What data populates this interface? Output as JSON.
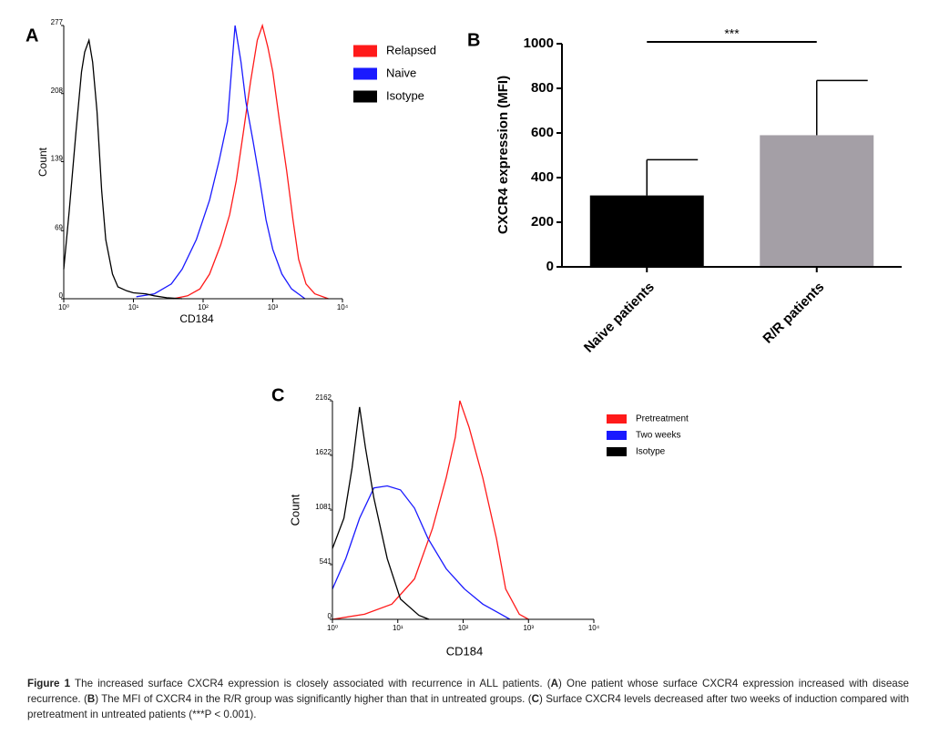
{
  "chart_data": [
    {
      "type": "line",
      "panel": "A",
      "xlabel": "CD184",
      "ylabel": "Count",
      "log_x": true,
      "xlim": [
        1,
        10000
      ],
      "xticks": [
        {
          "value": 1,
          "label": "10⁰"
        },
        {
          "value": 10,
          "label": "10¹"
        },
        {
          "value": 100,
          "label": "10²"
        },
        {
          "value": 1000,
          "label": "10³"
        },
        {
          "value": 10000,
          "label": "10⁴"
        }
      ],
      "ylim": [
        0,
        277
      ],
      "yticks": [
        0,
        69,
        139,
        208,
        277
      ],
      "legend": "right",
      "series": [
        {
          "name": "Relapsed",
          "color": "#ff1a1a",
          "x": [
            37,
            60,
            90,
            124,
            180,
            240,
            300,
            380,
            480,
            600,
            710,
            850,
            1000,
            1250,
            1580,
            1950,
            2350,
            3000,
            4000,
            6300
          ],
          "values": [
            0,
            3,
            10,
            25,
            55,
            85,
            120,
            170,
            220,
            262,
            277,
            255,
            230,
            180,
            130,
            80,
            40,
            15,
            5,
            0
          ]
        },
        {
          "name": "Naive",
          "color": "#1a1aff",
          "x": [
            11,
            20,
            35,
            50,
            80,
            124,
            170,
            224,
            288,
            350,
            410,
            520,
            650,
            800,
            1000,
            1350,
            1860,
            2900
          ],
          "values": [
            2,
            5,
            15,
            30,
            60,
            100,
            140,
            180,
            277,
            240,
            200,
            160,
            120,
            80,
            50,
            25,
            10,
            0
          ]
        },
        {
          "name": "Isotype",
          "color": "#000000",
          "x": [
            1.0,
            1.2,
            1.5,
            1.8,
            2.0,
            2.3,
            2.6,
            3.0,
            3.5,
            4,
            5,
            6,
            8,
            10,
            15,
            20,
            30,
            50
          ],
          "values": [
            30,
            90,
            170,
            230,
            250,
            262,
            240,
            190,
            110,
            60,
            25,
            12,
            8,
            6,
            5,
            3,
            1,
            0
          ]
        }
      ]
    },
    {
      "type": "bar",
      "panel": "B",
      "ylabel": "CXCR4 expression (MFI)",
      "categories": [
        "Naive patients",
        "R/R patients"
      ],
      "values": [
        320,
        590
      ],
      "errors": [
        160,
        245
      ],
      "colors": [
        "#000000",
        "#a49fa6"
      ],
      "ylim": [
        0,
        1000
      ],
      "yticks": [
        0,
        200,
        400,
        600,
        800,
        1000
      ],
      "annotation": "***"
    },
    {
      "type": "line",
      "panel": "C",
      "xlabel": "CD184",
      "ylabel": "Count",
      "log_x": true,
      "xlim": [
        1,
        10000
      ],
      "xticks": [
        {
          "value": 1,
          "label": "10⁰"
        },
        {
          "value": 10,
          "label": "10¹"
        },
        {
          "value": 100,
          "label": "10²"
        },
        {
          "value": 1000,
          "label": "10³"
        },
        {
          "value": 10000,
          "label": "10⁴"
        }
      ],
      "ylim": [
        0,
        2162
      ],
      "yticks": [
        0,
        541,
        1081,
        1622,
        2162
      ],
      "legend": "right",
      "series": [
        {
          "name": "Pretreatment",
          "color": "#ff1a1a",
          "x": [
            1.0,
            3.1,
            8.1,
            18,
            34,
            55,
            76,
            89,
            123,
            200,
            324,
            447,
            724,
            1000
          ],
          "values": [
            0,
            50,
            150,
            400,
            900,
            1400,
            1800,
            2162,
            1900,
            1400,
            800,
            300,
            50,
            0
          ]
        },
        {
          "name": "Two weeks",
          "color": "#1a1aff",
          "x": [
            1.0,
            1.6,
            2.6,
            4.3,
            6.9,
            11,
            18,
            29,
            55,
            105,
            200,
            380,
            520
          ],
          "values": [
            300,
            600,
            1000,
            1300,
            1320,
            1280,
            1100,
            800,
            500,
            300,
            150,
            50,
            0
          ]
        },
        {
          "name": "Isotype",
          "color": "#000000",
          "x": [
            1.0,
            1.5,
            2.0,
            2.6,
            3.2,
            4.3,
            6.9,
            11,
            21,
            30
          ],
          "values": [
            700,
            1000,
            1500,
            2100,
            1700,
            1200,
            600,
            200,
            40,
            0
          ]
        }
      ]
    }
  ],
  "caption": [
    {
      "text": "Figure 1",
      "bold": true
    },
    {
      "text": " The increased surface CXCR4 expression is closely associated with recurrence in ALL patients. (",
      "bold": false
    },
    {
      "text": "A",
      "bold": true
    },
    {
      "text": ") One patient whose surface CXCR4 expression increased with disease recurrence. (",
      "bold": false
    },
    {
      "text": "B",
      "bold": true
    },
    {
      "text": ") The MFI of CXCR4 in the R/R group was significantly higher than that in untreated groups. (",
      "bold": false
    },
    {
      "text": "C",
      "bold": true
    },
    {
      "text": ") Surface CXCR4 levels decreased after two weeks of induction compared with pretreatment in untreated patients (***P < 0.001).",
      "bold": false
    }
  ]
}
